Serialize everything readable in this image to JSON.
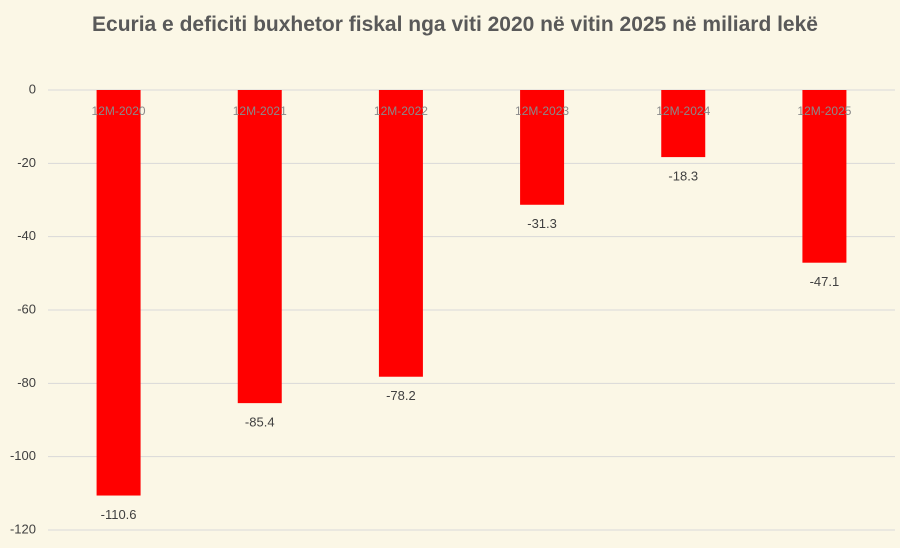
{
  "chart_data": {
    "type": "bar",
    "title": "Ecuria e deficiti buxhetor fiskal nga viti 2020 në vitin 2025 në miliard lekë",
    "categories": [
      "12M-2020",
      "12M-2021",
      "12M-2022",
      "12M-2023",
      "12M-2024",
      "12M-2025"
    ],
    "values": [
      -110.6,
      -85.4,
      -78.2,
      -31.3,
      -18.3,
      -47.1
    ],
    "color": "#ff0000",
    "ylim": [
      -120,
      0
    ],
    "yticks": [
      0,
      -20,
      -40,
      -60,
      -80,
      -100,
      -120
    ],
    "grid": true
  }
}
